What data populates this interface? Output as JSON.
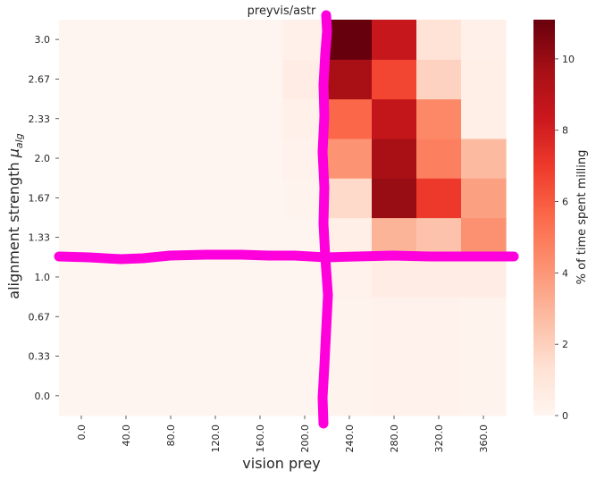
{
  "chart_data": {
    "type": "heatmap",
    "title": "preyvis/astr",
    "xlabel": "vision prey",
    "ylabel_main": "alignment strength ",
    "ylabel_symbol": "μ",
    "ylabel_subscript": "alg",
    "x": [
      "0.0",
      "40.0",
      "80.0",
      "120.0",
      "160.0",
      "200.0",
      "240.0",
      "280.0",
      "320.0",
      "360.0"
    ],
    "y": [
      "0.0",
      "0.33",
      "0.67",
      "1.0",
      "1.33",
      "1.67",
      "2.0",
      "2.33",
      "2.67",
      "3.0"
    ],
    "values": [
      [
        0,
        0,
        0,
        0,
        0,
        0,
        0.1,
        0.2,
        0.2,
        0.1
      ],
      [
        0,
        0,
        0,
        0,
        0,
        0,
        0.1,
        0.2,
        0.2,
        0.1
      ],
      [
        0,
        0,
        0,
        0,
        0,
        0,
        0.1,
        0.2,
        0.2,
        0.1
      ],
      [
        0,
        0,
        0,
        0,
        0,
        0,
        0.2,
        0.5,
        0.5,
        0.5
      ],
      [
        0,
        0,
        0,
        0,
        0,
        0,
        0.4,
        3.0,
        2.5,
        4.2
      ],
      [
        0,
        0,
        0,
        0,
        0,
        0.1,
        1.6,
        10.0,
        7.0,
        3.7
      ],
      [
        0,
        0,
        0,
        0,
        0,
        0.2,
        4.1,
        9.6,
        4.8,
        2.8
      ],
      [
        0,
        0,
        0,
        0,
        0,
        0.3,
        5.6,
        8.6,
        4.5,
        0.4
      ],
      [
        0,
        0,
        0,
        0,
        0,
        0.5,
        9.6,
        6.6,
        1.9,
        0.4
      ],
      [
        0,
        0,
        0,
        0,
        0,
        0.3,
        11.1,
        8.5,
        1.2,
        0.3
      ]
    ],
    "colorbar": {
      "label": "% of time spent milling",
      "range": [
        0,
        11.1
      ],
      "ticks": [
        "0",
        "2",
        "4",
        "6",
        "8",
        "10"
      ],
      "colormap": "Reds"
    },
    "annotations": {
      "color": "#ff00dd",
      "description": "hand-drawn crosshair: vertical stroke near vision prey ≈ 215, horizontal stroke near alignment strength ≈ 1.17"
    }
  }
}
